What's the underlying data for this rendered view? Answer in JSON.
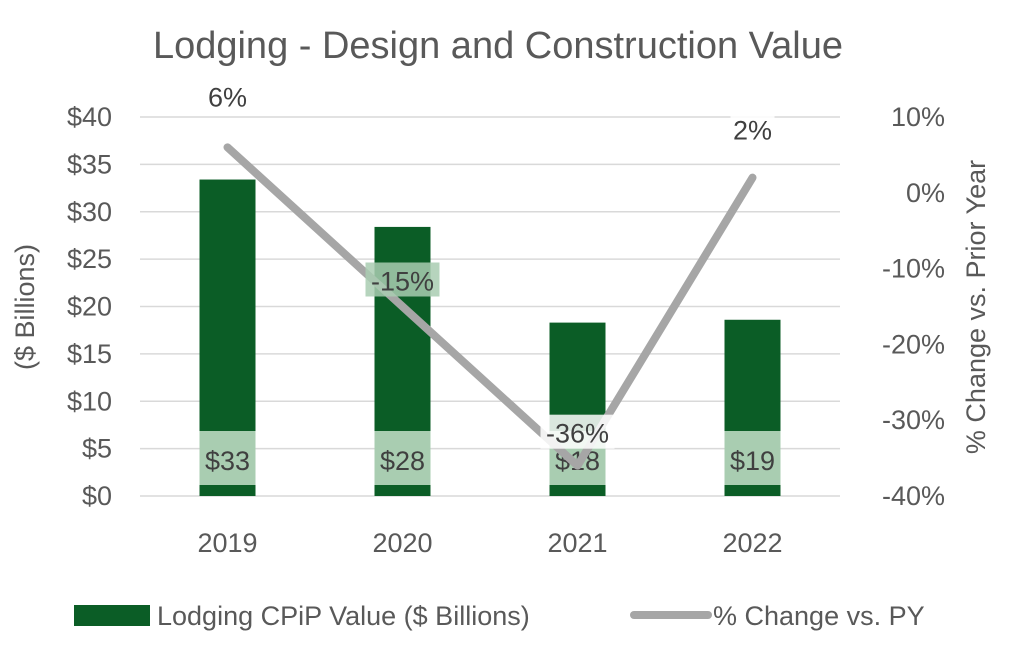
{
  "chart_data": {
    "type": "bar",
    "title": "Lodging - Design and Construction Value",
    "categories": [
      "2019",
      "2020",
      "2021",
      "2022"
    ],
    "series": [
      {
        "name": "Lodging CPiP Value ($ Billions)",
        "type": "bar",
        "axis": "left",
        "values": [
          33.4,
          28.4,
          18.3,
          18.6
        ],
        "labels": [
          "$33",
          "$28",
          "$18",
          "$19"
        ],
        "color": "#0b5d26"
      },
      {
        "name": "% Change vs. PY",
        "type": "line",
        "axis": "right",
        "values": [
          6,
          -15,
          -36,
          2
        ],
        "labels": [
          "6%",
          "-15%",
          "-36%",
          "2%"
        ],
        "color": "#a6a6a6"
      }
    ],
    "ylabel": "($ Billions)",
    "y2label": "% Change vs. Prior Year",
    "ylim": [
      0,
      40
    ],
    "y2lim": [
      -40,
      10
    ],
    "yticks": [
      "$0",
      "$5",
      "$10",
      "$15",
      "$20",
      "$25",
      "$30",
      "$35",
      "$40"
    ],
    "y2ticks": [
      "-40%",
      "-30%",
      "-20%",
      "-10%",
      "0%",
      "10%"
    ],
    "grid": true,
    "legend": "bottom",
    "label_box_color": "#a9cdb1",
    "gridline_color": "#d9d9d9"
  }
}
